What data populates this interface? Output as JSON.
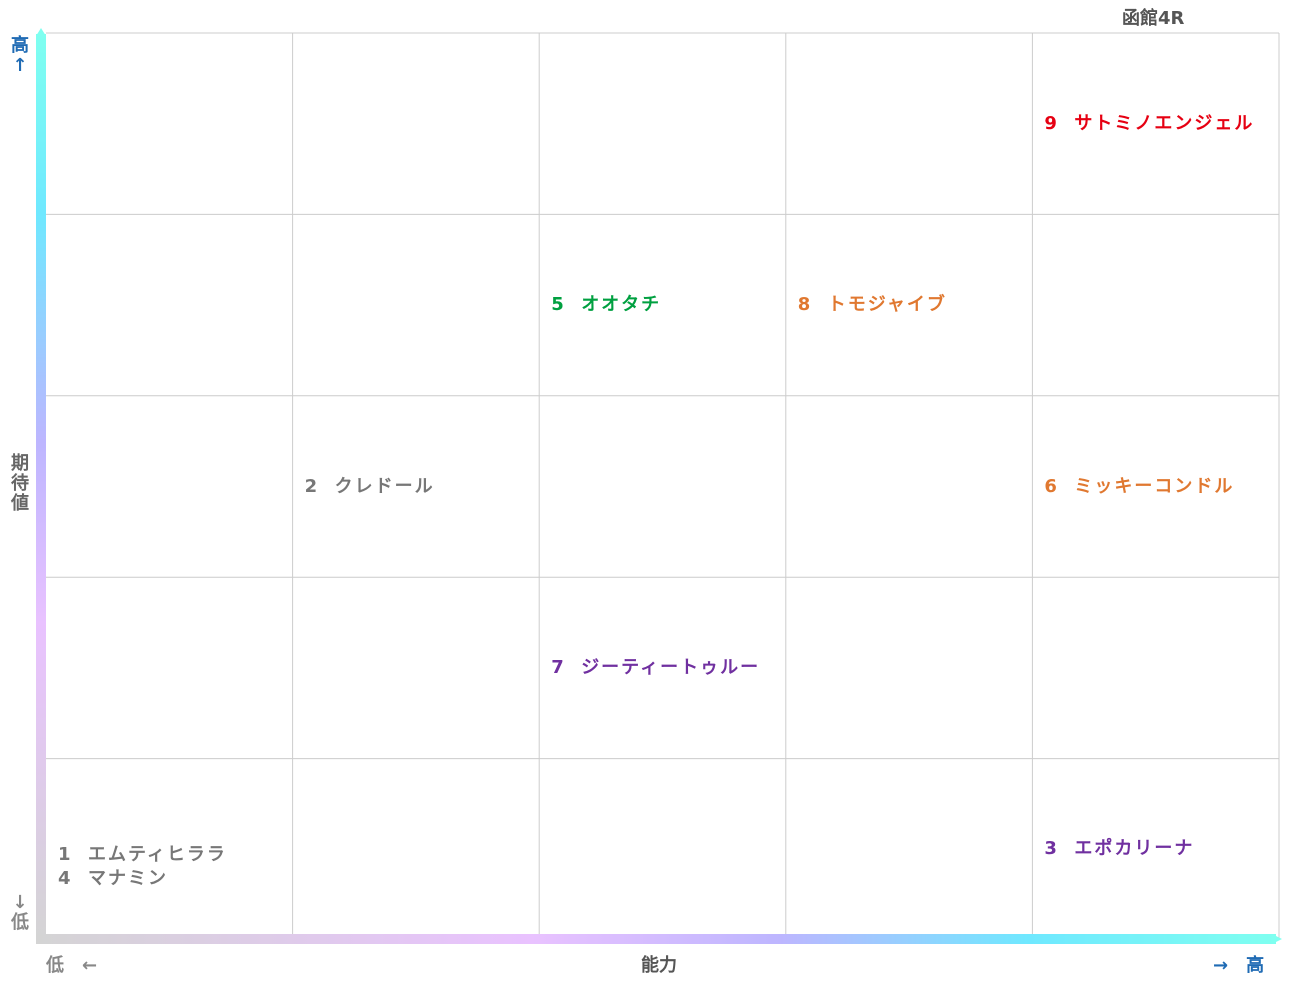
{
  "chart_data": {
    "type": "table",
    "title": "函館4R",
    "xlabel": "能力",
    "ylabel": "期待値",
    "x_axis": {
      "low_label": "低　←",
      "high_label": "→　高"
    },
    "y_axis": {
      "high_label": "高↑",
      "low_label": "↓低"
    },
    "columns": 5,
    "rows": 5,
    "grid": true,
    "colors": {
      "red": "#e60012",
      "green": "#00a040",
      "orange": "#e07830",
      "purple": "#7030a0",
      "gray": "#777777",
      "blue": "#1f6bb4"
    },
    "entries": [
      {
        "num": "1",
        "name": "エムティヒララ",
        "x": 1,
        "y": 1,
        "color": "gray"
      },
      {
        "num": "4",
        "name": "マナミン",
        "x": 1,
        "y": 1,
        "color": "gray"
      },
      {
        "num": "2",
        "name": "クレドール",
        "x": 2,
        "y": 3,
        "color": "gray"
      },
      {
        "num": "3",
        "name": "エポカリーナ",
        "x": 5,
        "y": 1,
        "color": "purple"
      },
      {
        "num": "5",
        "name": "オオタチ",
        "x": 3,
        "y": 4,
        "color": "green"
      },
      {
        "num": "6",
        "name": "ミッキーコンドル",
        "x": 5,
        "y": 3,
        "color": "orange"
      },
      {
        "num": "7",
        "name": "ジーティートゥルー",
        "x": 3,
        "y": 2,
        "color": "purple"
      },
      {
        "num": "8",
        "name": "トモジャイブ",
        "x": 4,
        "y": 4,
        "color": "orange"
      },
      {
        "num": "9",
        "name": "サトミノエンジェル",
        "x": 5,
        "y": 5,
        "color": "red"
      }
    ]
  }
}
